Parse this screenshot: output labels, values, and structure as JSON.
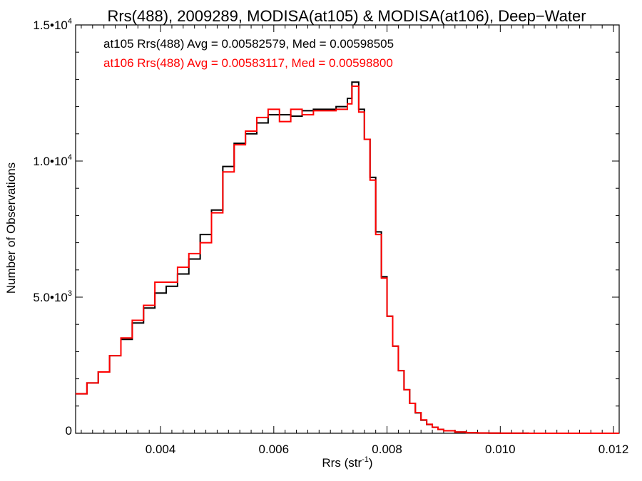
{
  "chart_data": {
    "type": "line",
    "title": "Rrs(488), 2009289, MODISA(at105) & MODISA(at106), Deep−Water",
    "xlabel_main": "Rrs (str",
    "xlabel_sup": "-1",
    "xlabel_close": ")",
    "ylabel": "Number of Observations",
    "xlim": [
      0.0025,
      0.0121
    ],
    "ylim": [
      0,
      15000
    ],
    "x_ticks": [
      {
        "value": 0.004,
        "label": "0.004"
      },
      {
        "value": 0.006,
        "label": "0.006"
      },
      {
        "value": 0.008,
        "label": "0.008"
      },
      {
        "value": 0.01,
        "label": "0.010"
      },
      {
        "value": 0.012,
        "label": "0.012"
      }
    ],
    "y_ticks": [
      {
        "value": 0,
        "label_main": "0",
        "label_sup": ""
      },
      {
        "value": 5000,
        "label_main": "5.0•10",
        "label_sup": "3"
      },
      {
        "value": 10000,
        "label_main": "1.0•10",
        "label_sup": "4"
      },
      {
        "value": 15000,
        "label_main": "1.5•10",
        "label_sup": "4"
      }
    ],
    "grid": false,
    "legend_placement": "top-left",
    "annotations": [
      {
        "text": "at105 Rrs(488) Avg = 0.00582579, Med = 0.00598505",
        "color": "#000000"
      },
      {
        "text": "at106 Rrs(488) Avg = 0.00583117, Med = 0.00598800",
        "color": "#ff0000"
      }
    ],
    "series": [
      {
        "color": "#000000",
        "x": [
          0.0025,
          0.0027,
          0.0029,
          0.0031,
          0.0033,
          0.0035,
          0.0037,
          0.0039,
          0.0041,
          0.0043,
          0.0045,
          0.0047,
          0.0049,
          0.0051,
          0.0053,
          0.0055,
          0.0057,
          0.0059,
          0.0061,
          0.0063,
          0.0065,
          0.0067,
          0.0069,
          0.0071,
          0.0073,
          0.00738,
          0.0075,
          0.0076,
          0.0077,
          0.0078,
          0.0079,
          0.008,
          0.0081,
          0.0082,
          0.0083,
          0.0084,
          0.0085,
          0.0086,
          0.0087,
          0.0088,
          0.0089,
          0.009,
          0.0092,
          0.0094,
          0.0096,
          0.0098,
          0.01,
          0.0105,
          0.011,
          0.0115,
          0.0121
        ],
        "values": [
          1450,
          1850,
          2250,
          2850,
          3450,
          4050,
          4600,
          5150,
          5400,
          5850,
          6400,
          7300,
          8200,
          9800,
          10650,
          11000,
          11400,
          11700,
          11700,
          11650,
          11850,
          11900,
          11900,
          12000,
          12300,
          12900,
          11900,
          10800,
          9400,
          7400,
          5750,
          4300,
          3200,
          2300,
          1600,
          1100,
          750,
          480,
          320,
          220,
          140,
          90,
          45,
          20,
          10,
          5,
          2,
          0,
          0,
          0,
          0
        ]
      },
      {
        "color": "#ff0000",
        "x": [
          0.0025,
          0.0027,
          0.0029,
          0.0031,
          0.0033,
          0.0035,
          0.0037,
          0.0039,
          0.0041,
          0.0043,
          0.0045,
          0.0047,
          0.0049,
          0.0051,
          0.0053,
          0.0055,
          0.0057,
          0.0059,
          0.0061,
          0.0063,
          0.0065,
          0.0067,
          0.0069,
          0.0071,
          0.0073,
          0.00738,
          0.0075,
          0.0076,
          0.0077,
          0.0078,
          0.0079,
          0.008,
          0.0081,
          0.0082,
          0.0083,
          0.0084,
          0.0085,
          0.0086,
          0.0087,
          0.0088,
          0.0089,
          0.009,
          0.0092,
          0.0094,
          0.0096,
          0.0098,
          0.01,
          0.0105,
          0.011,
          0.0115,
          0.0121
        ],
        "values": [
          1450,
          1850,
          2250,
          2850,
          3500,
          4150,
          4700,
          5550,
          5550,
          6100,
          6600,
          7000,
          8100,
          9600,
          10600,
          11100,
          11600,
          11900,
          11450,
          11900,
          11700,
          11850,
          11850,
          11900,
          12100,
          12750,
          11800,
          10800,
          9300,
          7300,
          5700,
          4300,
          3200,
          2300,
          1600,
          1100,
          760,
          490,
          330,
          220,
          140,
          90,
          45,
          20,
          10,
          5,
          2,
          0,
          0,
          0,
          0
        ]
      }
    ]
  }
}
